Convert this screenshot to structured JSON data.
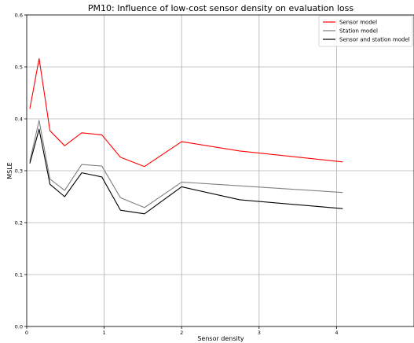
{
  "chart_data": {
    "type": "line",
    "title": "PM10: Influence of low-cost sensor density on evaluation loss",
    "xlabel": "Sensor density",
    "ylabel": "MSLE",
    "xlim": [
      0,
      5
    ],
    "ylim": [
      0.0,
      0.6
    ],
    "xticks": [
      0,
      1,
      2,
      3,
      4
    ],
    "yticks": [
      0.0,
      0.1,
      0.2,
      0.3,
      0.4,
      0.5,
      0.6
    ],
    "xtick_labels": [
      "0",
      "1",
      "2",
      "3",
      "4"
    ],
    "ytick_labels": [
      "0.0",
      "0.1",
      "0.2",
      "0.3",
      "0.4",
      "0.5",
      "0.6"
    ],
    "grid": true,
    "legend_position": "top-right",
    "x": [
      0.04,
      0.16,
      0.3,
      0.49,
      0.71,
      0.97,
      1.21,
      1.52,
      2.0,
      2.75,
      4.08
    ],
    "series": [
      {
        "name": "Sensor model",
        "color": "#ff0000",
        "values": [
          0.419,
          0.516,
          0.377,
          0.348,
          0.373,
          0.369,
          0.326,
          0.308,
          0.356,
          0.338,
          0.317
        ]
      },
      {
        "name": "Station model",
        "color": "#808080",
        "values": [
          0.318,
          0.397,
          0.284,
          0.262,
          0.312,
          0.309,
          0.248,
          0.229,
          0.278,
          0.271,
          0.258
        ]
      },
      {
        "name": "Sensor and station model",
        "color": "#000000",
        "values": [
          0.314,
          0.38,
          0.274,
          0.25,
          0.296,
          0.288,
          0.224,
          0.217,
          0.269,
          0.244,
          0.227
        ]
      }
    ]
  }
}
